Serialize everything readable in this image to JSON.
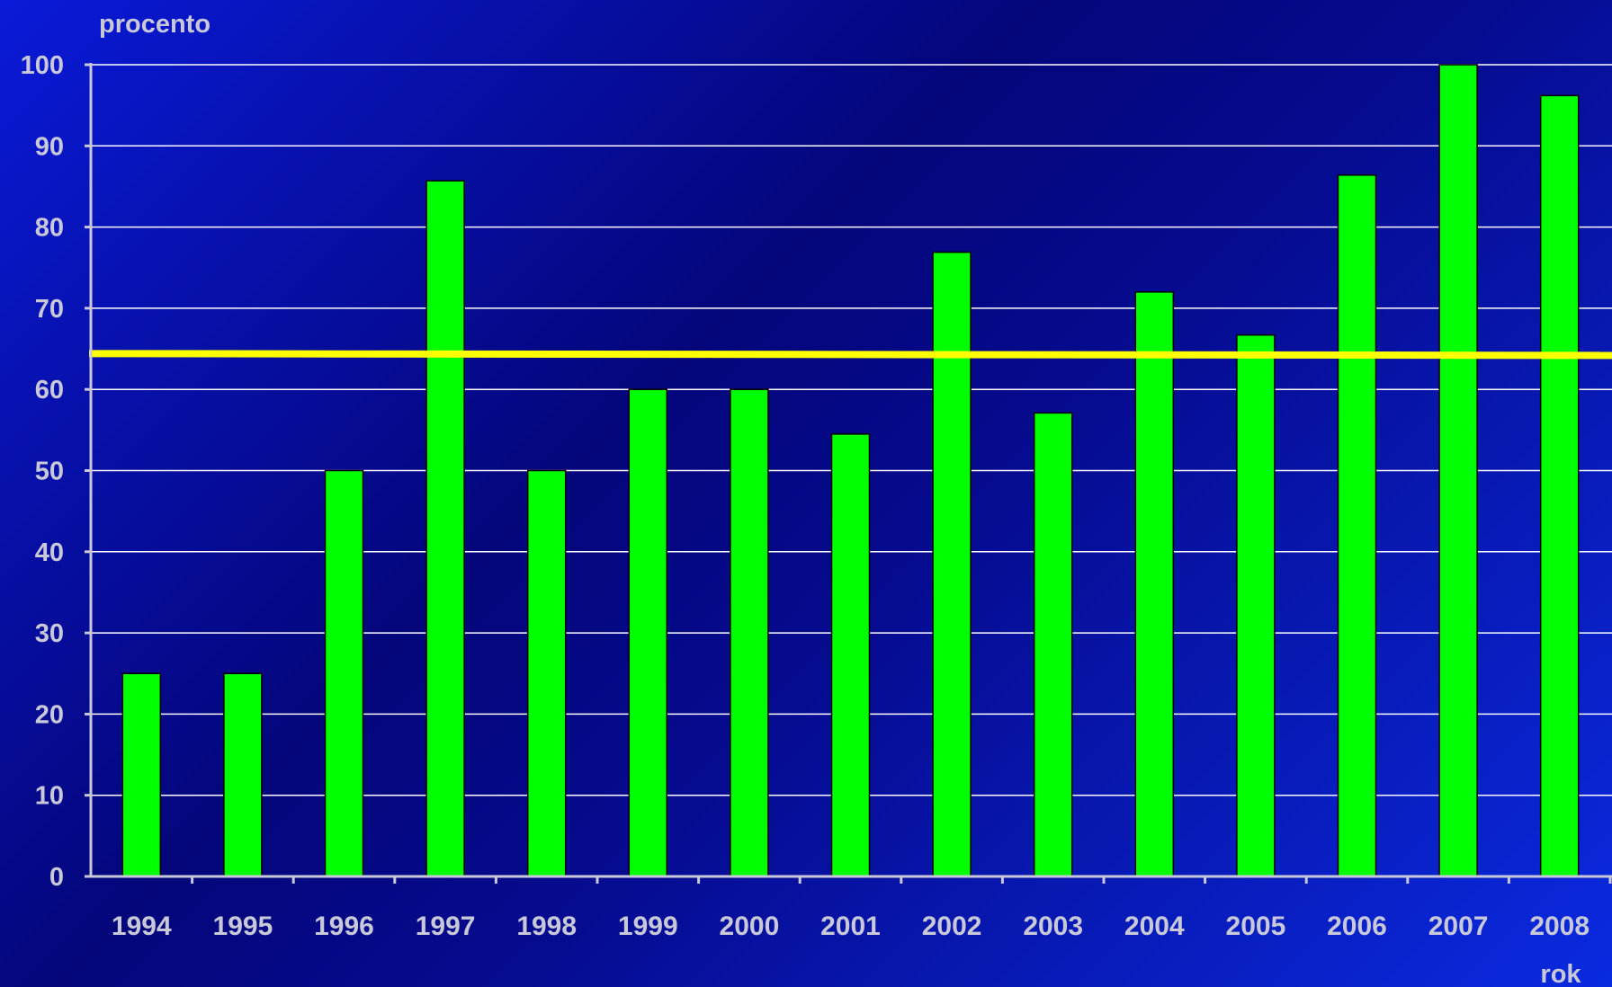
{
  "chart_data": {
    "type": "bar",
    "ylabel": "procento",
    "xlabel": "rok",
    "ylim": [
      0,
      100
    ],
    "yticks": [
      0,
      10,
      20,
      30,
      40,
      50,
      60,
      70,
      80,
      90,
      100
    ],
    "categories": [
      "1994",
      "1995",
      "1996",
      "1997",
      "1998",
      "1999",
      "2000",
      "2001",
      "2002",
      "2003",
      "2004",
      "2005",
      "2006",
      "2007",
      "2008"
    ],
    "values": [
      25,
      25,
      50,
      85.7,
      50,
      60,
      60,
      54.5,
      76.9,
      57.1,
      72,
      66.7,
      86.4,
      100,
      96.2
    ],
    "reference_line": 64.3,
    "grid": true,
    "colors": {
      "bar": "#00ff00",
      "reference_line": "#ffff00",
      "grid": "#ffffff",
      "axis": "#c8c8d8"
    }
  }
}
